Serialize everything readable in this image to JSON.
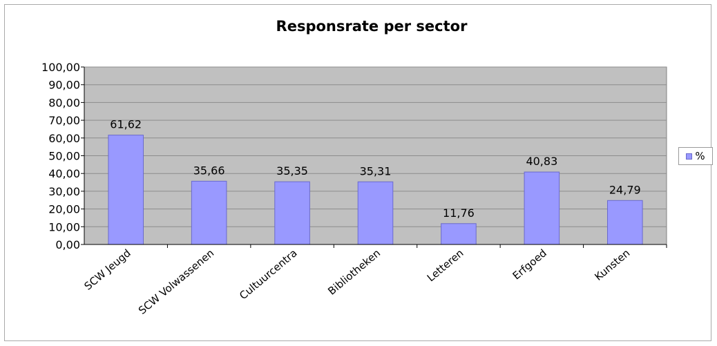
{
  "chart_data": {
    "type": "bar",
    "title": "Responsrate per sector",
    "categories": [
      "SCW Jeugd",
      "SCW Volwassenen",
      "Cultuurcentra",
      "Bibliotheken",
      "Letteren",
      "Erfgoed",
      "Kunsten"
    ],
    "series": [
      {
        "name": "%",
        "values": [
          61.62,
          35.66,
          35.35,
          35.31,
          11.76,
          40.83,
          24.79
        ],
        "value_labels": [
          "61,62",
          "35,66",
          "35,35",
          "35,31",
          "11,76",
          "40,83",
          "24,79"
        ],
        "color": "#9999ff"
      }
    ],
    "ylim": [
      0,
      100
    ],
    "yticks": [
      0,
      10,
      20,
      30,
      40,
      50,
      60,
      70,
      80,
      90,
      100
    ],
    "ytick_labels": [
      "0,00",
      "10,00",
      "20,00",
      "30,00",
      "40,00",
      "50,00",
      "60,00",
      "70,00",
      "80,00",
      "90,00",
      "100,00"
    ],
    "xlabel": "",
    "ylabel": "",
    "grid": true,
    "legend_position": "right",
    "plot_background": "#c0c0c0"
  }
}
